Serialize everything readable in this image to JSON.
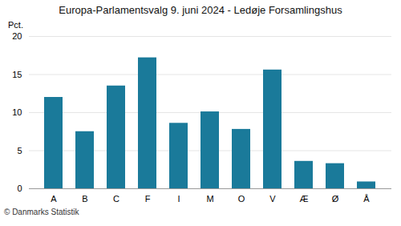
{
  "chart_data": {
    "type": "bar",
    "title": "Europa-Parlamentsvalg 9. juni 2024 - Ledøje Forsamlingshus",
    "ylabel": "Pct.",
    "footer": "© Danmarks Statistik",
    "categories": [
      "A",
      "B",
      "C",
      "F",
      "I",
      "M",
      "O",
      "V",
      "Æ",
      "Ø",
      "Å"
    ],
    "values": [
      12.0,
      7.5,
      13.5,
      17.2,
      8.6,
      10.1,
      7.8,
      15.6,
      3.6,
      3.3,
      0.9
    ],
    "color": "#1a7a9a",
    "ylim": [
      0,
      20
    ],
    "yticks": [
      0,
      5,
      10,
      15,
      20
    ],
    "grid": true
  }
}
